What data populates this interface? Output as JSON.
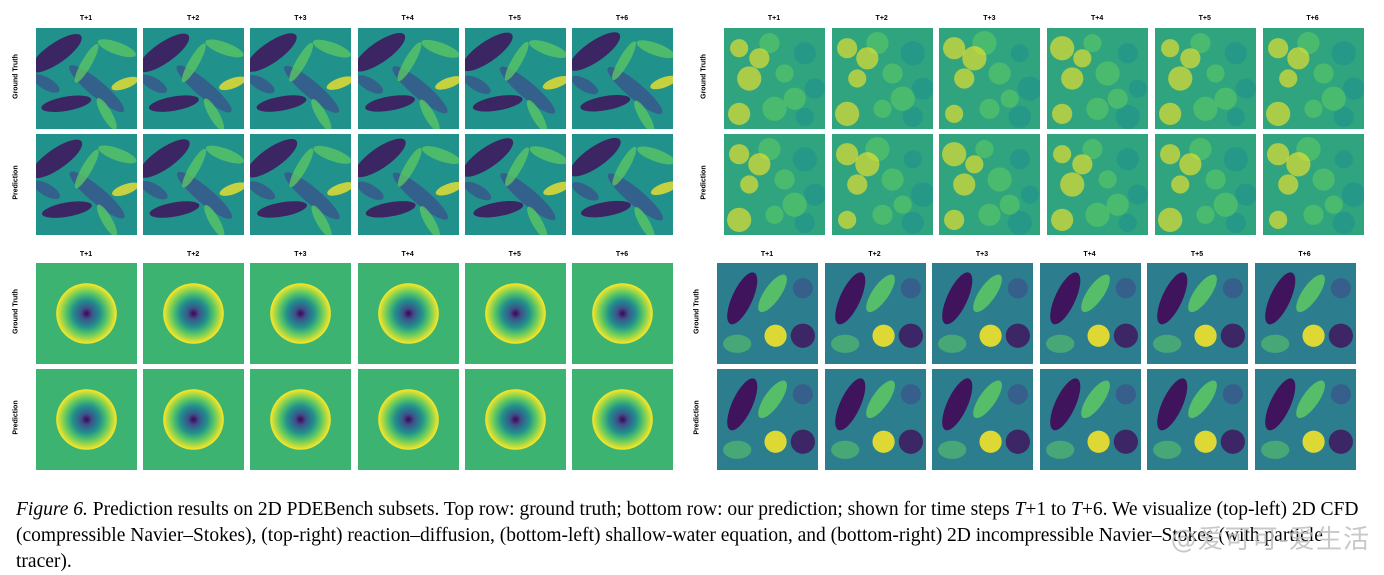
{
  "panels": [
    {
      "id": "top-left",
      "time_steps": [
        "T+1",
        "T+2",
        "T+3",
        "T+4",
        "T+5",
        "T+6"
      ],
      "rows": [
        "Ground Truth",
        "Prediction"
      ],
      "pattern": "cfd"
    },
    {
      "id": "top-right",
      "time_steps": [
        "T+1",
        "T+2",
        "T+3",
        "T+4",
        "T+5",
        "T+6"
      ],
      "rows": [
        "Ground Truth",
        "Prediction"
      ],
      "pattern": "reaction-diffusion"
    },
    {
      "id": "bottom-left",
      "time_steps": [
        "T+1",
        "T+2",
        "T+3",
        "T+4",
        "T+5",
        "T+6"
      ],
      "rows": [
        "Ground Truth",
        "Prediction"
      ],
      "pattern": "shallow-water"
    },
    {
      "id": "bottom-right",
      "time_steps": [
        "T+1",
        "T+2",
        "T+3",
        "T+4",
        "T+5",
        "T+6"
      ],
      "rows": [
        "Ground Truth",
        "Prediction"
      ],
      "pattern": "incompressible-ns"
    }
  ],
  "caption": {
    "figure_label": "Figure 6.",
    "text_1": " Prediction results on 2D PDEBench subsets. Top row: ground truth; bottom row: our prediction; shown for time steps ",
    "math_1": "T",
    "text_2": "+1 to ",
    "math_2": "T",
    "text_3": "+6. We visualize (top-left) 2D CFD (compressible Navier–Stokes), (top-right) reaction–diffusion, (bottom-left) shallow-water equation, and (bottom-right) 2D incompressible Navier–Stokes (with particle tracer)."
  },
  "watermark": "@爱可可-爱生活",
  "colors": {
    "viridis_dark": "#440154",
    "viridis_blue": "#3b528b",
    "viridis_teal": "#21918c",
    "viridis_green": "#5ec962",
    "viridis_yellow": "#fde725",
    "background_green": "#3cb371"
  }
}
